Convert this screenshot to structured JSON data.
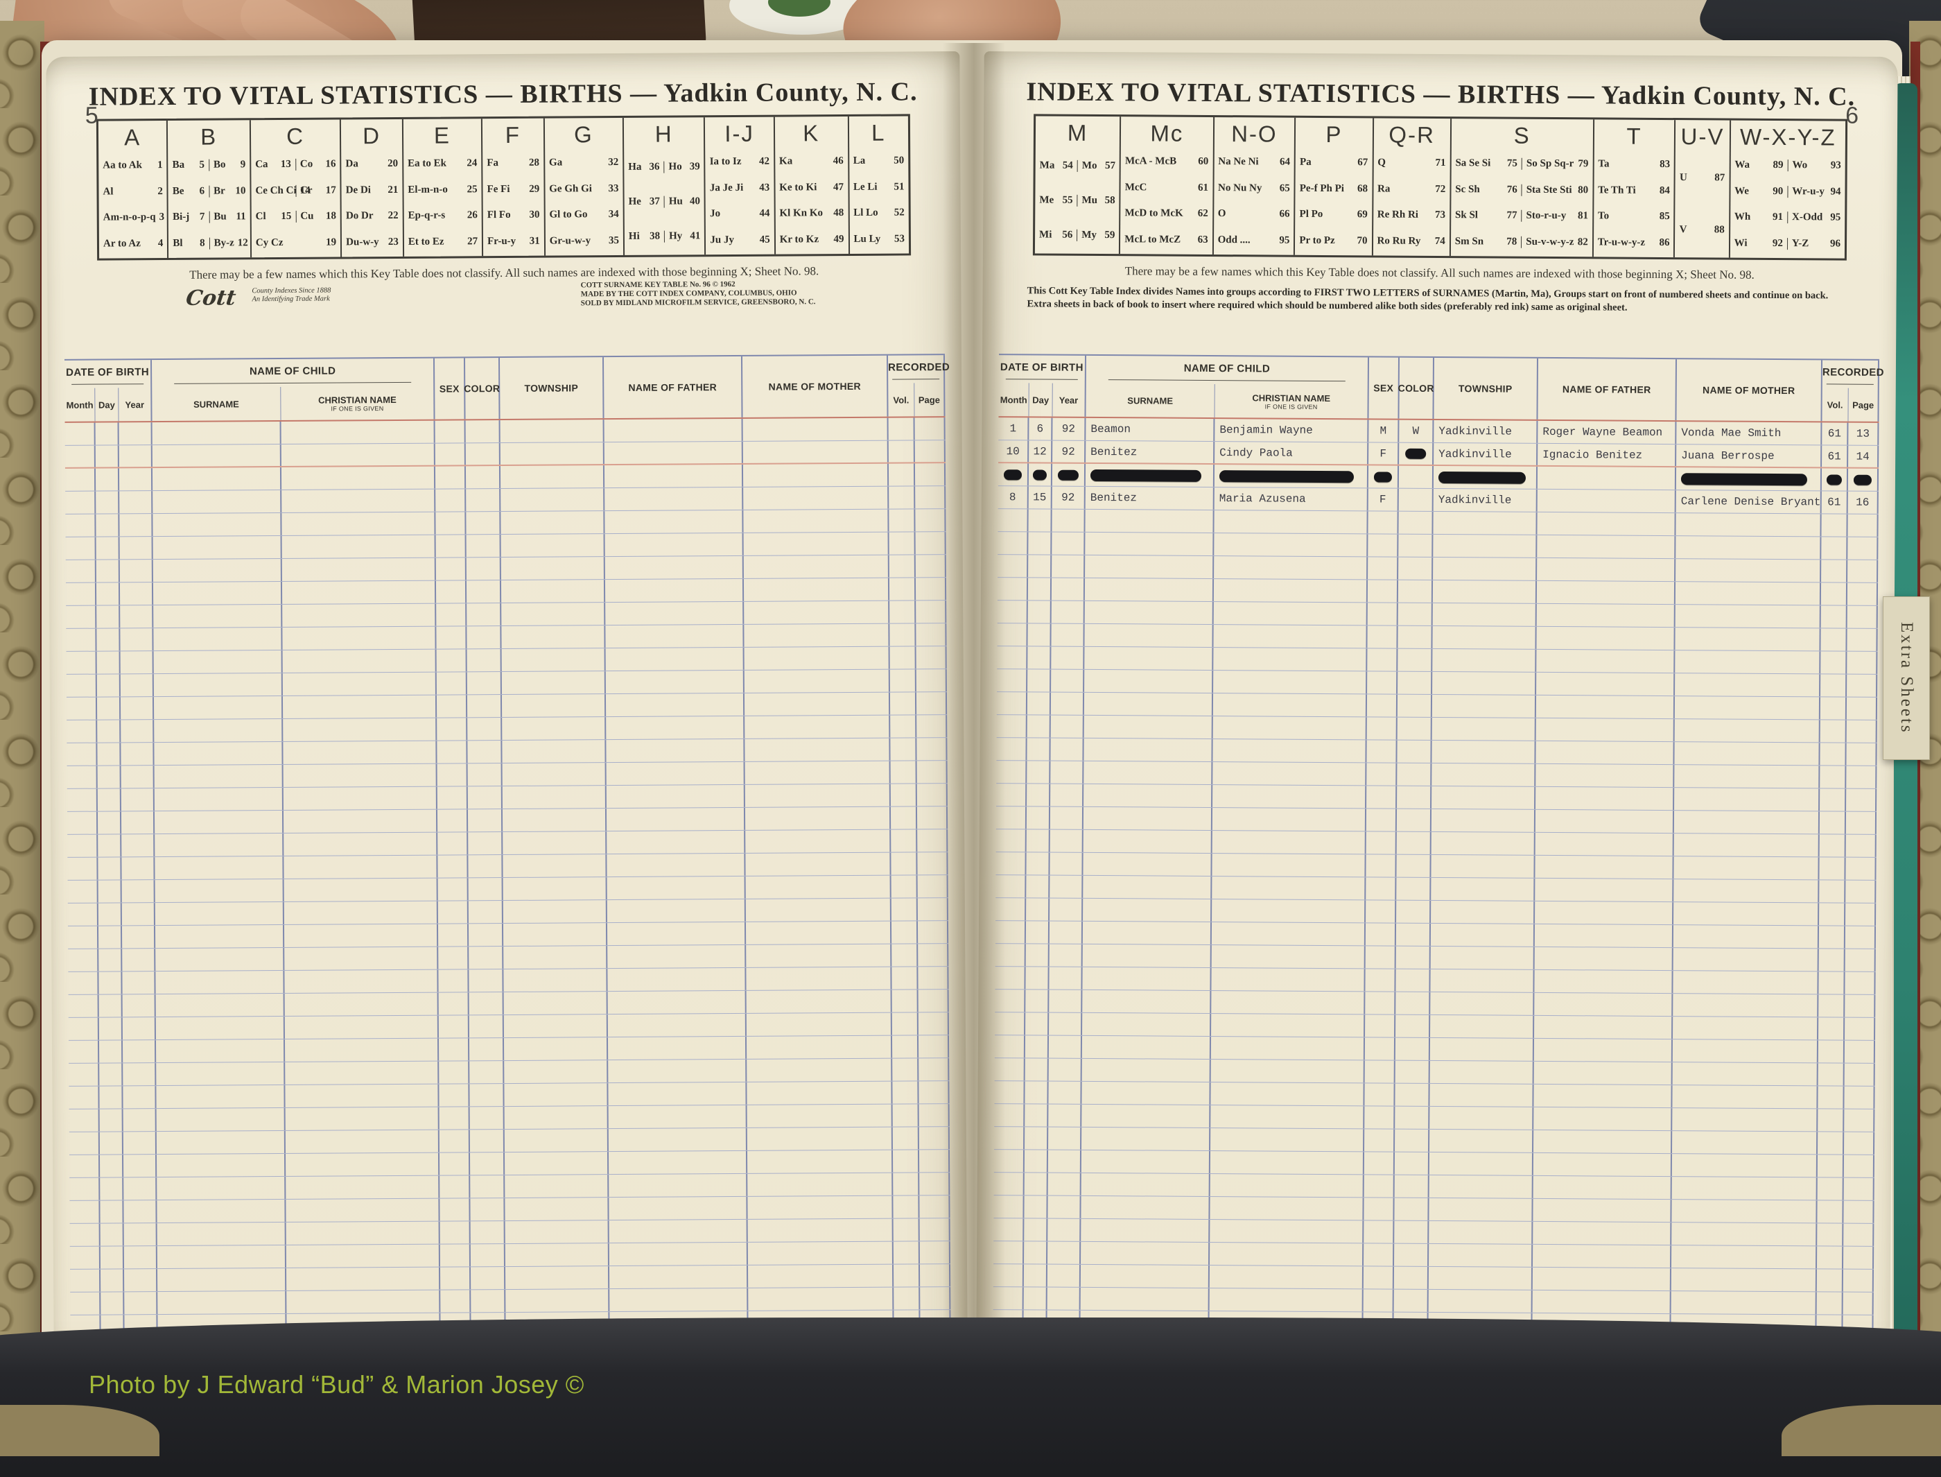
{
  "photo_credit": "Photo by J Edward “Bud” & Marion Josey ©",
  "tab_label": "Extra Sheets",
  "colors": {
    "accent_green": "#a2b838",
    "ledger_blue": "#7f88ad",
    "ledger_red": "#c4796a",
    "paper": "#f0ead6",
    "teal_page_edge": "#2e8270",
    "redaction": "#17171a"
  },
  "headers": {
    "date_of_birth": "DATE OF BIRTH",
    "month": "Month",
    "day": "Day",
    "year": "Year",
    "name_of_child": "NAME OF CHILD",
    "surname": "SURNAME",
    "christian_name": "CHRISTIAN NAME",
    "christian_sub": "IF ONE IS GIVEN",
    "sex": "SEX",
    "color": "COLOR",
    "township": "TOWNSHIP",
    "name_of_father": "NAME OF FATHER",
    "name_of_mother": "NAME OF MOTHER",
    "recorded": "RECORDED",
    "vol": "Vol.",
    "page": "Page"
  },
  "left_page": {
    "page_number": "5",
    "title": "INDEX TO VITAL STATISTICS — BIRTHS — Yadkin County, N. C.",
    "key_table": [
      {
        "letter": "A",
        "cells": [
          [
            "Aa to Ak 1"
          ],
          [
            "Al 2"
          ],
          [
            "Am-n-o-p-q 3"
          ],
          [
            "Ar to Az 4"
          ]
        ]
      },
      {
        "letter": "B",
        "cells": [
          [
            "Ba 5",
            "Bo 9"
          ],
          [
            "Be 6",
            "Br 10"
          ],
          [
            "Bi-j 7",
            "Bu 11"
          ],
          [
            "Bl 8",
            "By-z 12"
          ]
        ]
      },
      {
        "letter": "C",
        "cells": [
          [
            "Ca 13",
            "Co 16"
          ],
          [
            "Ce Ch Ci 14",
            "Cr 17"
          ],
          [
            "Cl 15",
            "Cu 18"
          ],
          [
            "Cy Cz 19"
          ]
        ]
      },
      {
        "letter": "D",
        "cells": [
          [
            "Da 20"
          ],
          [
            "De Di 21"
          ],
          [
            "Do Dr 22"
          ],
          [
            "Du-w-y 23"
          ]
        ]
      },
      {
        "letter": "E",
        "cells": [
          [
            "Ea to Ek 24"
          ],
          [
            "El-m-n-o 25"
          ],
          [
            "Ep-q-r-s 26"
          ],
          [
            "Et to Ez 27"
          ]
        ]
      },
      {
        "letter": "F",
        "cells": [
          [
            "Fa 28"
          ],
          [
            "Fe Fi 29"
          ],
          [
            "Fl Fo 30"
          ],
          [
            "Fr-u-y 31"
          ]
        ]
      },
      {
        "letter": "G",
        "cells": [
          [
            "Ga 32"
          ],
          [
            "Ge Gh Gi 33"
          ],
          [
            "Gl to Go 34"
          ],
          [
            "Gr-u-w-y 35"
          ]
        ]
      },
      {
        "letter": "H",
        "cells": [
          [
            "Ha 36",
            "Ho 39"
          ],
          [
            "He 37",
            "Hu 40"
          ],
          [
            "Hi 38",
            "Hy 41"
          ]
        ]
      },
      {
        "letter": "I-J",
        "cells": [
          [
            "Ia to Iz 42"
          ],
          [
            "Ja Je Ji 43"
          ],
          [
            "Jo 44"
          ],
          [
            "Ju Jy 45"
          ]
        ]
      },
      {
        "letter": "K",
        "cells": [
          [
            "Ka 46"
          ],
          [
            "Ke to Ki 47"
          ],
          [
            "Kl Kn Ko 48"
          ],
          [
            "Kr to Kz 49"
          ]
        ]
      },
      {
        "letter": "L",
        "cells": [
          [
            "La 50"
          ],
          [
            "Le Li 51"
          ],
          [
            "Ll Lo 52"
          ],
          [
            "Lu Ly 53"
          ]
        ]
      }
    ],
    "note": "There may be a few names which this Key Table does not classify.   All such names are indexed with those beginning X; Sheet No. 98.",
    "logo": {
      "script": "Cott",
      "line1": "County Indexes Since 1888",
      "line2": "An Identifying Trade Mark"
    },
    "fine_print": [
      "COTT SURNAME KEY TABLE No. 96 © 1962",
      "MADE BY THE COTT INDEX COMPANY, COLUMBUS, OHIO",
      "SOLD BY MIDLAND MICROFILM SERVICE, GREENSBORO, N. C."
    ],
    "row_count": 40,
    "rows": []
  },
  "right_page": {
    "page_number": "6",
    "title": "INDEX TO VITAL STATISTICS — BIRTHS — Yadkin County, N. C.",
    "key_table": [
      {
        "letter": "M",
        "cells": [
          [
            "Ma 54",
            "Mo 57"
          ],
          [
            "Me 55",
            "Mu 58"
          ],
          [
            "Mi 56",
            "My 59"
          ]
        ]
      },
      {
        "letter": "Mc",
        "cells": [
          [
            "McA - McB 60"
          ],
          [
            "McC 61"
          ],
          [
            "McD to McK 62"
          ],
          [
            "McL to McZ 63"
          ]
        ]
      },
      {
        "letter": "N-O",
        "cells": [
          [
            "Na Ne Ni 64"
          ],
          [
            "No Nu Ny 65"
          ],
          [
            "O 66"
          ],
          [
            "Odd .... 95"
          ]
        ]
      },
      {
        "letter": "P",
        "cells": [
          [
            "Pa 67"
          ],
          [
            "Pe-f Ph Pi 68"
          ],
          [
            "Pl Po 69"
          ],
          [
            "Pr to Pz 70"
          ]
        ]
      },
      {
        "letter": "Q-R",
        "cells": [
          [
            "Q 71"
          ],
          [
            "Ra 72"
          ],
          [
            "Re Rh Ri 73"
          ],
          [
            "Ro Ru Ry 74"
          ]
        ]
      },
      {
        "letter": "S",
        "cells": [
          [
            "Sa Se Si 75",
            "So Sp Sq-r 79"
          ],
          [
            "Sc Sh 76",
            "Sta Ste Sti 80"
          ],
          [
            "Sk Sl 77",
            "Sto-r-u-y 81"
          ],
          [
            "Sm Sn 78",
            "Su-v-w-y-z 82"
          ]
        ]
      },
      {
        "letter": "T",
        "cells": [
          [
            "Ta 83"
          ],
          [
            "Te Th Ti 84"
          ],
          [
            "To 85"
          ],
          [
            "Tr-u-w-y-z 86"
          ]
        ]
      },
      {
        "letter": "U-V",
        "cells": [
          [
            "U 87"
          ],
          [
            "V 88"
          ]
        ]
      },
      {
        "letter": "W-X-Y-Z",
        "cells": [
          [
            "Wa 89",
            "Wo 93"
          ],
          [
            "We 90",
            "Wr-u-y 94"
          ],
          [
            "Wh 91",
            "X-Odd 95"
          ],
          [
            "Wi 92",
            "Y-Z 96"
          ]
        ]
      }
    ],
    "note": "There may be a few names which this Key Table does not classify.   All such names are indexed with those beginning X; Sheet No. 98.",
    "bold_notes": [
      "This Cott Key Table Index divides Names into groups according to FIRST TWO LETTERS of SURNAMES (Martin, Ma), Groups start on front of numbered sheets and continue on back.",
      "Extra sheets in back of book to insert where required which should be numbered alike both sides (preferably red ink) same as original sheet."
    ],
    "row_count": 40,
    "rows": [
      {
        "month": "1",
        "day": "6",
        "year": "92",
        "surname": "Beamon",
        "christian": "Benjamin Wayne",
        "sex": "M",
        "color": "W",
        "township": "Yadkinville",
        "father": "Roger Wayne Beamon",
        "mother": "Vonda Mae Smith",
        "vol": "61",
        "page": "13"
      },
      {
        "month": "10",
        "day": "12",
        "year": "92",
        "surname": "Benitez",
        "christian": "Cindy Paola",
        "sex": "F",
        "color": "█",
        "township": "Yadkinville",
        "father": "Ignacio Benitez",
        "mother": "Juana Berrospe",
        "vol": "61",
        "page": "14"
      },
      {
        "month": "█",
        "day": "█",
        "year": "█",
        "surname": "█",
        "christian": "█",
        "sex": "█",
        "color": "",
        "township": "█",
        "father": "",
        "mother": "█",
        "vol": "█",
        "page": "█"
      },
      {
        "month": "8",
        "day": "15",
        "year": "92",
        "surname": "Benitez",
        "christian": "Maria Azusena",
        "sex": "F",
        "color": "",
        "township": "Yadkinville",
        "father": "",
        "mother": "Carlene Denise Bryant",
        "vol": "61",
        "page": "16"
      }
    ]
  }
}
